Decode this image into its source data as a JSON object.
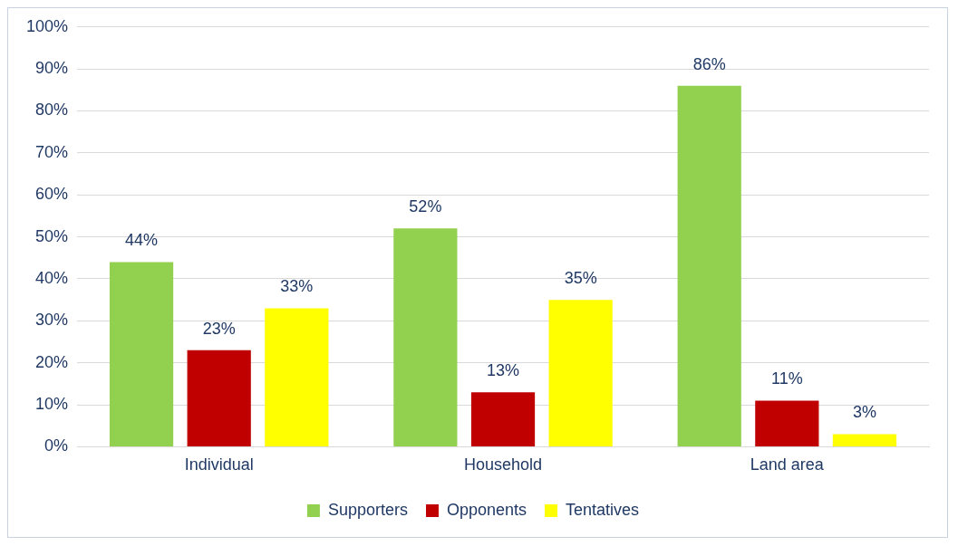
{
  "chart_data": {
    "type": "bar",
    "categories": [
      "Individual",
      "Household",
      "Land area"
    ],
    "series": [
      {
        "name": "Supporters",
        "color": "#92d050",
        "values": [
          44,
          52,
          86
        ],
        "value_labels": [
          "44%",
          "52%",
          "86%"
        ]
      },
      {
        "name": "Opponents",
        "color": "#c00000",
        "values": [
          23,
          13,
          11
        ],
        "value_labels": [
          "23%",
          "13%",
          "11%"
        ]
      },
      {
        "name": "Tentatives",
        "color": "#ffff00",
        "values": [
          33,
          35,
          3
        ],
        "value_labels": [
          "33%",
          "35%",
          "3%"
        ]
      }
    ],
    "ylim": [
      0,
      100
    ],
    "yticks": [
      {
        "value": 0,
        "label": "0%"
      },
      {
        "value": 10,
        "label": "10%"
      },
      {
        "value": 20,
        "label": "20%"
      },
      {
        "value": 30,
        "label": "30%"
      },
      {
        "value": 40,
        "label": "40%"
      },
      {
        "value": 50,
        "label": "50%"
      },
      {
        "value": 60,
        "label": "60%"
      },
      {
        "value": 70,
        "label": "70%"
      },
      {
        "value": 80,
        "label": "80%"
      },
      {
        "value": 90,
        "label": "90%"
      },
      {
        "value": 100,
        "label": "100%"
      }
    ],
    "grid": "y",
    "legend": "bottom"
  }
}
